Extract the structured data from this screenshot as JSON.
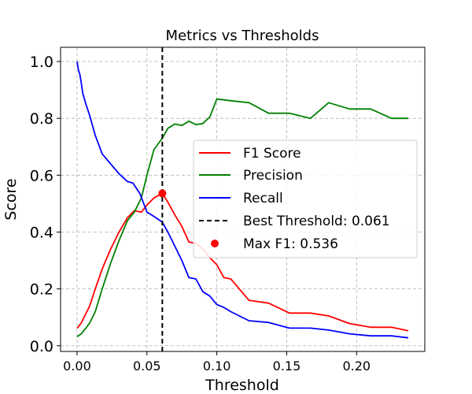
{
  "chart_data": {
    "type": "line",
    "title": "Metrics vs Thresholds",
    "xlabel": "Threshold",
    "ylabel": "Score",
    "xlim": [
      -0.0118,
      0.2488
    ],
    "ylim": [
      -0.02,
      1.05
    ],
    "xticks": [
      0.0,
      0.05,
      0.1,
      0.15,
      0.2
    ],
    "xtick_labels": [
      "0.00",
      "0.05",
      "0.10",
      "0.15",
      "0.20"
    ],
    "yticks": [
      0.0,
      0.2,
      0.4,
      0.6,
      0.8,
      1.0
    ],
    "ytick_labels": [
      "0.0",
      "0.2",
      "0.4",
      "0.6",
      "0.8",
      "1.0"
    ],
    "grid": true,
    "legend_position": "center-right",
    "series": [
      {
        "name": "F1 Score",
        "color": "#ff0000",
        "x": [
          0.0,
          0.003,
          0.006,
          0.009,
          0.013,
          0.018,
          0.024,
          0.03,
          0.036,
          0.041,
          0.046,
          0.05,
          0.055,
          0.061,
          0.065,
          0.07,
          0.075,
          0.08,
          0.085,
          0.09,
          0.095,
          0.1,
          0.105,
          0.11,
          0.123,
          0.137,
          0.152,
          0.167,
          0.18,
          0.195,
          0.21,
          0.225,
          0.237
        ],
        "y": [
          0.062,
          0.08,
          0.11,
          0.14,
          0.2,
          0.27,
          0.34,
          0.4,
          0.45,
          0.475,
          0.47,
          0.495,
          0.52,
          0.536,
          0.505,
          0.46,
          0.42,
          0.365,
          0.36,
          0.34,
          0.31,
          0.285,
          0.24,
          0.235,
          0.16,
          0.15,
          0.115,
          0.115,
          0.105,
          0.078,
          0.065,
          0.065,
          0.053
        ]
      },
      {
        "name": "Precision",
        "color": "#008000",
        "x": [
          0.0,
          0.003,
          0.006,
          0.009,
          0.013,
          0.018,
          0.024,
          0.03,
          0.036,
          0.041,
          0.046,
          0.05,
          0.055,
          0.061,
          0.065,
          0.07,
          0.075,
          0.08,
          0.085,
          0.09,
          0.095,
          0.1,
          0.105,
          0.11,
          0.123,
          0.137,
          0.152,
          0.167,
          0.18,
          0.195,
          0.21,
          0.225,
          0.237
        ],
        "y": [
          0.032,
          0.042,
          0.06,
          0.08,
          0.12,
          0.2,
          0.29,
          0.37,
          0.44,
          0.47,
          0.52,
          0.6,
          0.69,
          0.73,
          0.765,
          0.78,
          0.775,
          0.79,
          0.778,
          0.782,
          0.805,
          0.868,
          0.865,
          0.862,
          0.855,
          0.818,
          0.818,
          0.8,
          0.855,
          0.833,
          0.833,
          0.8,
          0.8
        ]
      },
      {
        "name": "Recall",
        "color": "#0000ff",
        "x": [
          0.0,
          0.001,
          0.002,
          0.003,
          0.004,
          0.006,
          0.009,
          0.013,
          0.018,
          0.024,
          0.03,
          0.036,
          0.04,
          0.045,
          0.05,
          0.055,
          0.061,
          0.065,
          0.07,
          0.075,
          0.08,
          0.085,
          0.09,
          0.095,
          0.1,
          0.105,
          0.11,
          0.123,
          0.137,
          0.152,
          0.167,
          0.18,
          0.195,
          0.21,
          0.225,
          0.237
        ],
        "y": [
          1.0,
          0.97,
          0.955,
          0.925,
          0.89,
          0.855,
          0.81,
          0.74,
          0.675,
          0.64,
          0.605,
          0.578,
          0.572,
          0.535,
          0.47,
          0.455,
          0.435,
          0.4,
          0.35,
          0.3,
          0.24,
          0.235,
          0.19,
          0.175,
          0.145,
          0.135,
          0.12,
          0.088,
          0.082,
          0.062,
          0.062,
          0.055,
          0.042,
          0.035,
          0.035,
          0.028
        ]
      }
    ],
    "vline": {
      "name": "Best Threshold: 0.061",
      "x": 0.061,
      "color": "#000000",
      "style": "dashed"
    },
    "marker": {
      "name": "Max F1: 0.536",
      "x": 0.061,
      "y": 0.536,
      "color": "#ff0000"
    }
  }
}
